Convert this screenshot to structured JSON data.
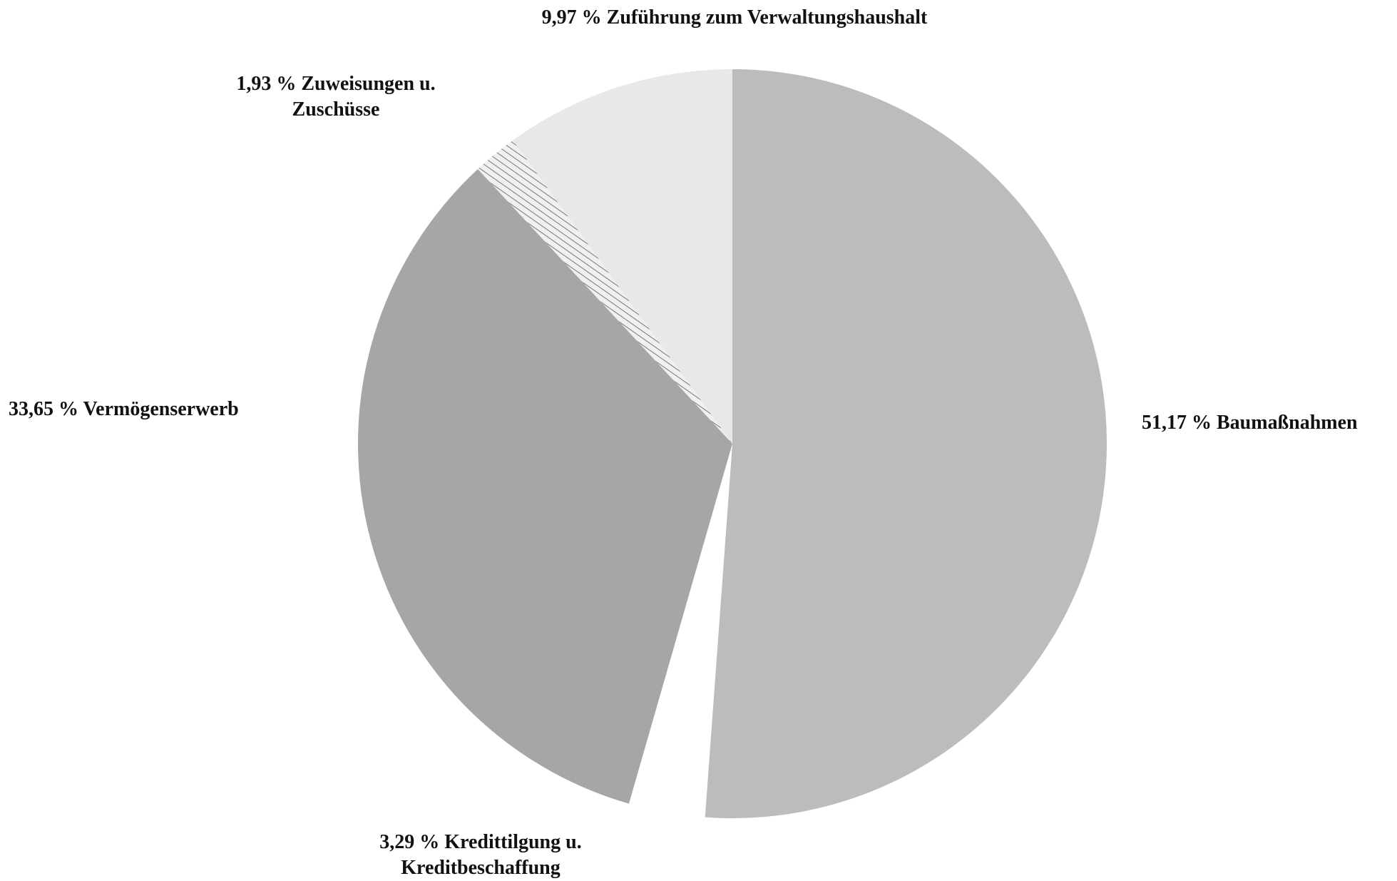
{
  "chart_data": {
    "type": "pie",
    "categories": [
      "Baumaßnahmen",
      "Kredittilgung u. Kreditbeschaffung",
      "Vermögenserwerb",
      "Zuweisungen u. Zuschüsse",
      "Zuführung zum Verwaltungshaushalt"
    ],
    "values": [
      51.17,
      3.29,
      33.65,
      1.93,
      9.97
    ],
    "value_labels": [
      "51,17 %",
      "3,29 %",
      "33,65 %",
      "1,93 %",
      "9,97 %"
    ],
    "colors": [
      "#bcbcbc",
      "#ffffff",
      "#a6a6a6",
      "#d4d4d4",
      "#e8e8e8"
    ]
  }
}
